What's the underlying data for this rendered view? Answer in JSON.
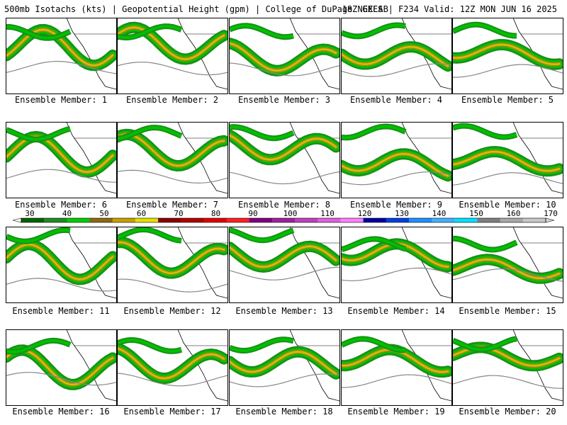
{
  "header": {
    "left": "500mb Isotachs (kts) | Geopotential Height (gpm) | College of DuPage NEXLAB",
    "right": "18Z GEFS | F234 Valid: 12Z MON JUN 16 2025"
  },
  "members": [
    "Ensemble Member: 1",
    "Ensemble Member: 2",
    "Ensemble Member: 3",
    "Ensemble Member: 4",
    "Ensemble Member: 5",
    "Ensemble Member: 6",
    "Ensemble Member: 7",
    "Ensemble Member: 8",
    "Ensemble Member: 9",
    "Ensemble Member: 10",
    "Ensemble Member: 11",
    "Ensemble Member: 12",
    "Ensemble Member: 13",
    "Ensemble Member: 14",
    "Ensemble Member: 15",
    "Ensemble Member: 16",
    "Ensemble Member: 17",
    "Ensemble Member: 18",
    "Ensemble Member: 19",
    "Ensemble Member: 20"
  ],
  "colorbar": {
    "ticks": [
      "30",
      "40",
      "50",
      "60",
      "70",
      "80",
      "90",
      "100",
      "110",
      "120",
      "130",
      "140",
      "150",
      "160",
      "170"
    ],
    "colors": [
      "#006400",
      "#228b22",
      "#00cc00",
      "#8b6914",
      "#c8a000",
      "#e0e000",
      "#8b0000",
      "#b00000",
      "#e00000",
      "#ff2020",
      "#800080",
      "#a020a0",
      "#c040c0",
      "#e060e0",
      "#ff80ff",
      "#0000a0",
      "#0040e0",
      "#1e90ff",
      "#40b0ff",
      "#00e0ff",
      "#7f7f7f",
      "#a9a9a9",
      "#c8c8c8"
    ],
    "unit": "kts"
  }
}
